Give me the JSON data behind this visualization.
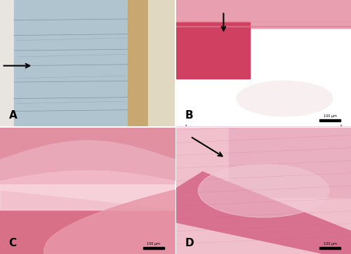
{
  "figsize": [
    5.0,
    3.62
  ],
  "dpi": 100,
  "panels": [
    "A",
    "B",
    "C",
    "D"
  ],
  "layout": {
    "nrows": 2,
    "ncols": 2
  },
  "colors": {
    "A": {
      "left_margin": "#e8e5e0",
      "main_tissue": "#b0c4d0",
      "right_brown": "#c8a870",
      "right_strip": "#e0d8c0",
      "line_color": "#506878"
    },
    "B": {
      "bg": "#f5c8d0",
      "top_band": "#e8a0b0",
      "deep_red": "#d04060",
      "light_area": "#f8f0f0",
      "arc_line": "#c06070"
    },
    "C": {
      "bg": "#f0b8c4",
      "upper_tissue": "#e090a0",
      "mid_tissue": "#e8a8b8",
      "lower_tissue": "#d87088",
      "gap": "#f8d8e0",
      "swoosh": "#e898a8"
    },
    "D": {
      "bg": "#f0c0cc",
      "top_right": "#e8b0c0",
      "dense_band": "#d87090",
      "central": "#f0c8d4",
      "fiber": "#c06080"
    }
  },
  "label_fontsize": 11,
  "label_color": "#000000",
  "scalebar_color": "#000000",
  "scalebar_label": "100 μm"
}
